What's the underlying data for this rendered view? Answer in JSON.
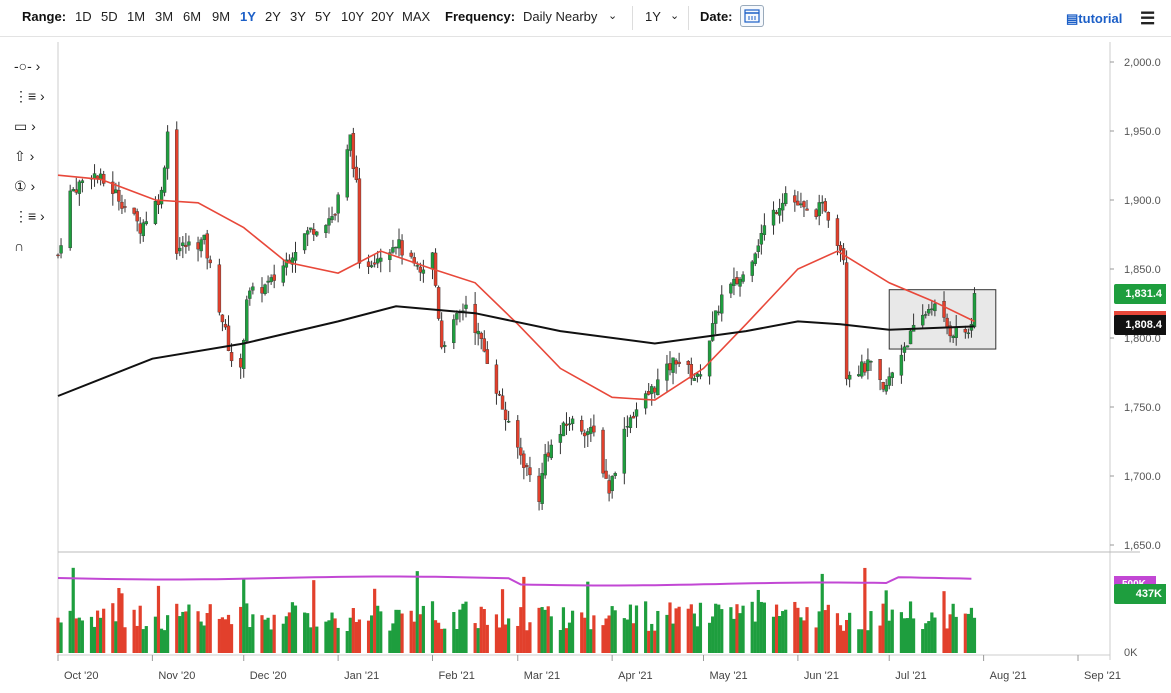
{
  "toolbar": {
    "range_label": "Range:",
    "ranges": [
      "1D",
      "5D",
      "1M",
      "3M",
      "6M",
      "9M",
      "1Y",
      "2Y",
      "3Y",
      "5Y",
      "10Y",
      "20Y",
      "MAX"
    ],
    "active_range": "1Y",
    "frequency_label": "Frequency:",
    "frequency_value": "Daily Nearby",
    "period_value": "1Y",
    "date_label": "Date:",
    "tutorial_label": "tutorial",
    "menu_icon": "hamburger-icon",
    "calendar_icon": "calendar-icon"
  },
  "tools": [
    {
      "name": "crosshair-tool",
      "glyph": "-○-  ›"
    },
    {
      "name": "drawing-list-tool",
      "glyph": "⋮≡  ›"
    },
    {
      "name": "shape-tool",
      "glyph": "▭  ›"
    },
    {
      "name": "arrow-tool",
      "glyph": "⇧  ›"
    },
    {
      "name": "annotation-tool",
      "glyph": "①  ›"
    },
    {
      "name": "settings-tool",
      "glyph": "⋮≡  ›"
    },
    {
      "name": "magnet-tool",
      "glyph": "∩"
    }
  ],
  "colors": {
    "up": "#1e9e3e",
    "down": "#e2402c",
    "ma_short": "#e8483a",
    "ma_long": "#111111",
    "volume_avg": "#c247d4",
    "box": "#e8e8e8"
  },
  "last_price": "1,831.4",
  "ma_value": "1,808.4",
  "volume_last": "437K",
  "chart_data": {
    "type": "candlestick",
    "x_ticks": [
      "Oct '20",
      "Nov '20",
      "Dec '20",
      "Jan '21",
      "Feb '21",
      "Mar '21",
      "Apr '21",
      "May '21",
      "Jun '21",
      "Jul '21",
      "Aug '21",
      "Sep '21"
    ],
    "price_ticks": [
      "2,000.0",
      "1,950.0",
      "1,900.0",
      "1,850.0",
      "1,800.0",
      "1,750.0",
      "1,700.0",
      "1,650.0"
    ],
    "price_ylim": [
      1650,
      2000
    ],
    "volume_ticks": [
      "500K",
      "0K"
    ],
    "close_points": [
      [
        "2020-10-01",
        1860
      ],
      [
        "2020-10-05",
        1905
      ],
      [
        "2020-10-12",
        1920
      ],
      [
        "2020-10-20",
        1905
      ],
      [
        "2020-10-28",
        1880
      ],
      [
        "2020-11-04",
        1905
      ],
      [
        "2020-11-06",
        1950
      ],
      [
        "2020-11-09",
        1865
      ],
      [
        "2020-11-18",
        1870
      ],
      [
        "2020-11-27",
        1785
      ],
      [
        "2020-11-30",
        1775
      ],
      [
        "2020-12-02",
        1830
      ],
      [
        "2020-12-10",
        1840
      ],
      [
        "2020-12-21",
        1875
      ],
      [
        "2020-12-31",
        1890
      ],
      [
        "2021-01-05",
        1945
      ],
      [
        "2021-01-07",
        1910
      ],
      [
        "2021-01-08",
        1850
      ],
      [
        "2021-01-20",
        1870
      ],
      [
        "2021-01-28",
        1845
      ],
      [
        "2021-02-01",
        1860
      ],
      [
        "2021-02-04",
        1795
      ],
      [
        "2021-02-12",
        1825
      ],
      [
        "2021-02-19",
        1785
      ],
      [
        "2021-02-26",
        1735
      ],
      [
        "2021-03-08",
        1685
      ],
      [
        "2021-03-10",
        1715
      ],
      [
        "2021-03-18",
        1740
      ],
      [
        "2021-03-26",
        1730
      ],
      [
        "2021-03-31",
        1690
      ],
      [
        "2021-04-06",
        1740
      ],
      [
        "2021-04-15",
        1765
      ],
      [
        "2021-04-22",
        1785
      ],
      [
        "2021-04-29",
        1770
      ],
      [
        "2021-05-07",
        1830
      ],
      [
        "2021-05-14",
        1845
      ],
      [
        "2021-05-21",
        1880
      ],
      [
        "2021-05-28",
        1905
      ],
      [
        "2021-06-04",
        1890
      ],
      [
        "2021-06-10",
        1895
      ],
      [
        "2021-06-16",
        1860
      ],
      [
        "2021-06-17",
        1775
      ],
      [
        "2021-06-25",
        1780
      ],
      [
        "2021-06-29",
        1760
      ],
      [
        "2021-07-06",
        1795
      ],
      [
        "2021-07-15",
        1825
      ],
      [
        "2021-07-21",
        1805
      ],
      [
        "2021-07-28",
        1805
      ],
      [
        "2021-07-29",
        1831.4
      ]
    ],
    "ma_short_points": [
      [
        "2020-10-01",
        1918
      ],
      [
        "2020-10-15",
        1915
      ],
      [
        "2020-11-02",
        1900
      ],
      [
        "2020-11-16",
        1898
      ],
      [
        "2020-12-01",
        1880
      ],
      [
        "2020-12-15",
        1855
      ],
      [
        "2021-01-01",
        1847
      ],
      [
        "2021-01-15",
        1863
      ],
      [
        "2021-02-01",
        1850
      ],
      [
        "2021-02-15",
        1840
      ],
      [
        "2021-03-01",
        1810
      ],
      [
        "2021-03-15",
        1778
      ],
      [
        "2021-04-01",
        1757
      ],
      [
        "2021-04-15",
        1755
      ],
      [
        "2021-05-01",
        1778
      ],
      [
        "2021-05-15",
        1810
      ],
      [
        "2021-06-01",
        1850
      ],
      [
        "2021-06-14",
        1863
      ],
      [
        "2021-07-01",
        1840
      ],
      [
        "2021-07-15",
        1827
      ],
      [
        "2021-07-29",
        1812
      ]
    ],
    "ma_long_points": [
      [
        "2020-10-01",
        1758
      ],
      [
        "2020-11-01",
        1785
      ],
      [
        "2020-12-01",
        1796
      ],
      [
        "2021-01-01",
        1812
      ],
      [
        "2021-01-20",
        1823
      ],
      [
        "2021-02-15",
        1818
      ],
      [
        "2021-03-15",
        1805
      ],
      [
        "2021-04-15",
        1796
      ],
      [
        "2021-05-15",
        1805
      ],
      [
        "2021-06-01",
        1812
      ],
      [
        "2021-06-15",
        1810
      ],
      [
        "2021-07-01",
        1806
      ],
      [
        "2021-07-29",
        1808.4
      ]
    ],
    "consolidation_box": {
      "x": [
        "2021-07-01",
        "2021-08-05"
      ],
      "y": [
        1792,
        1835
      ]
    }
  }
}
